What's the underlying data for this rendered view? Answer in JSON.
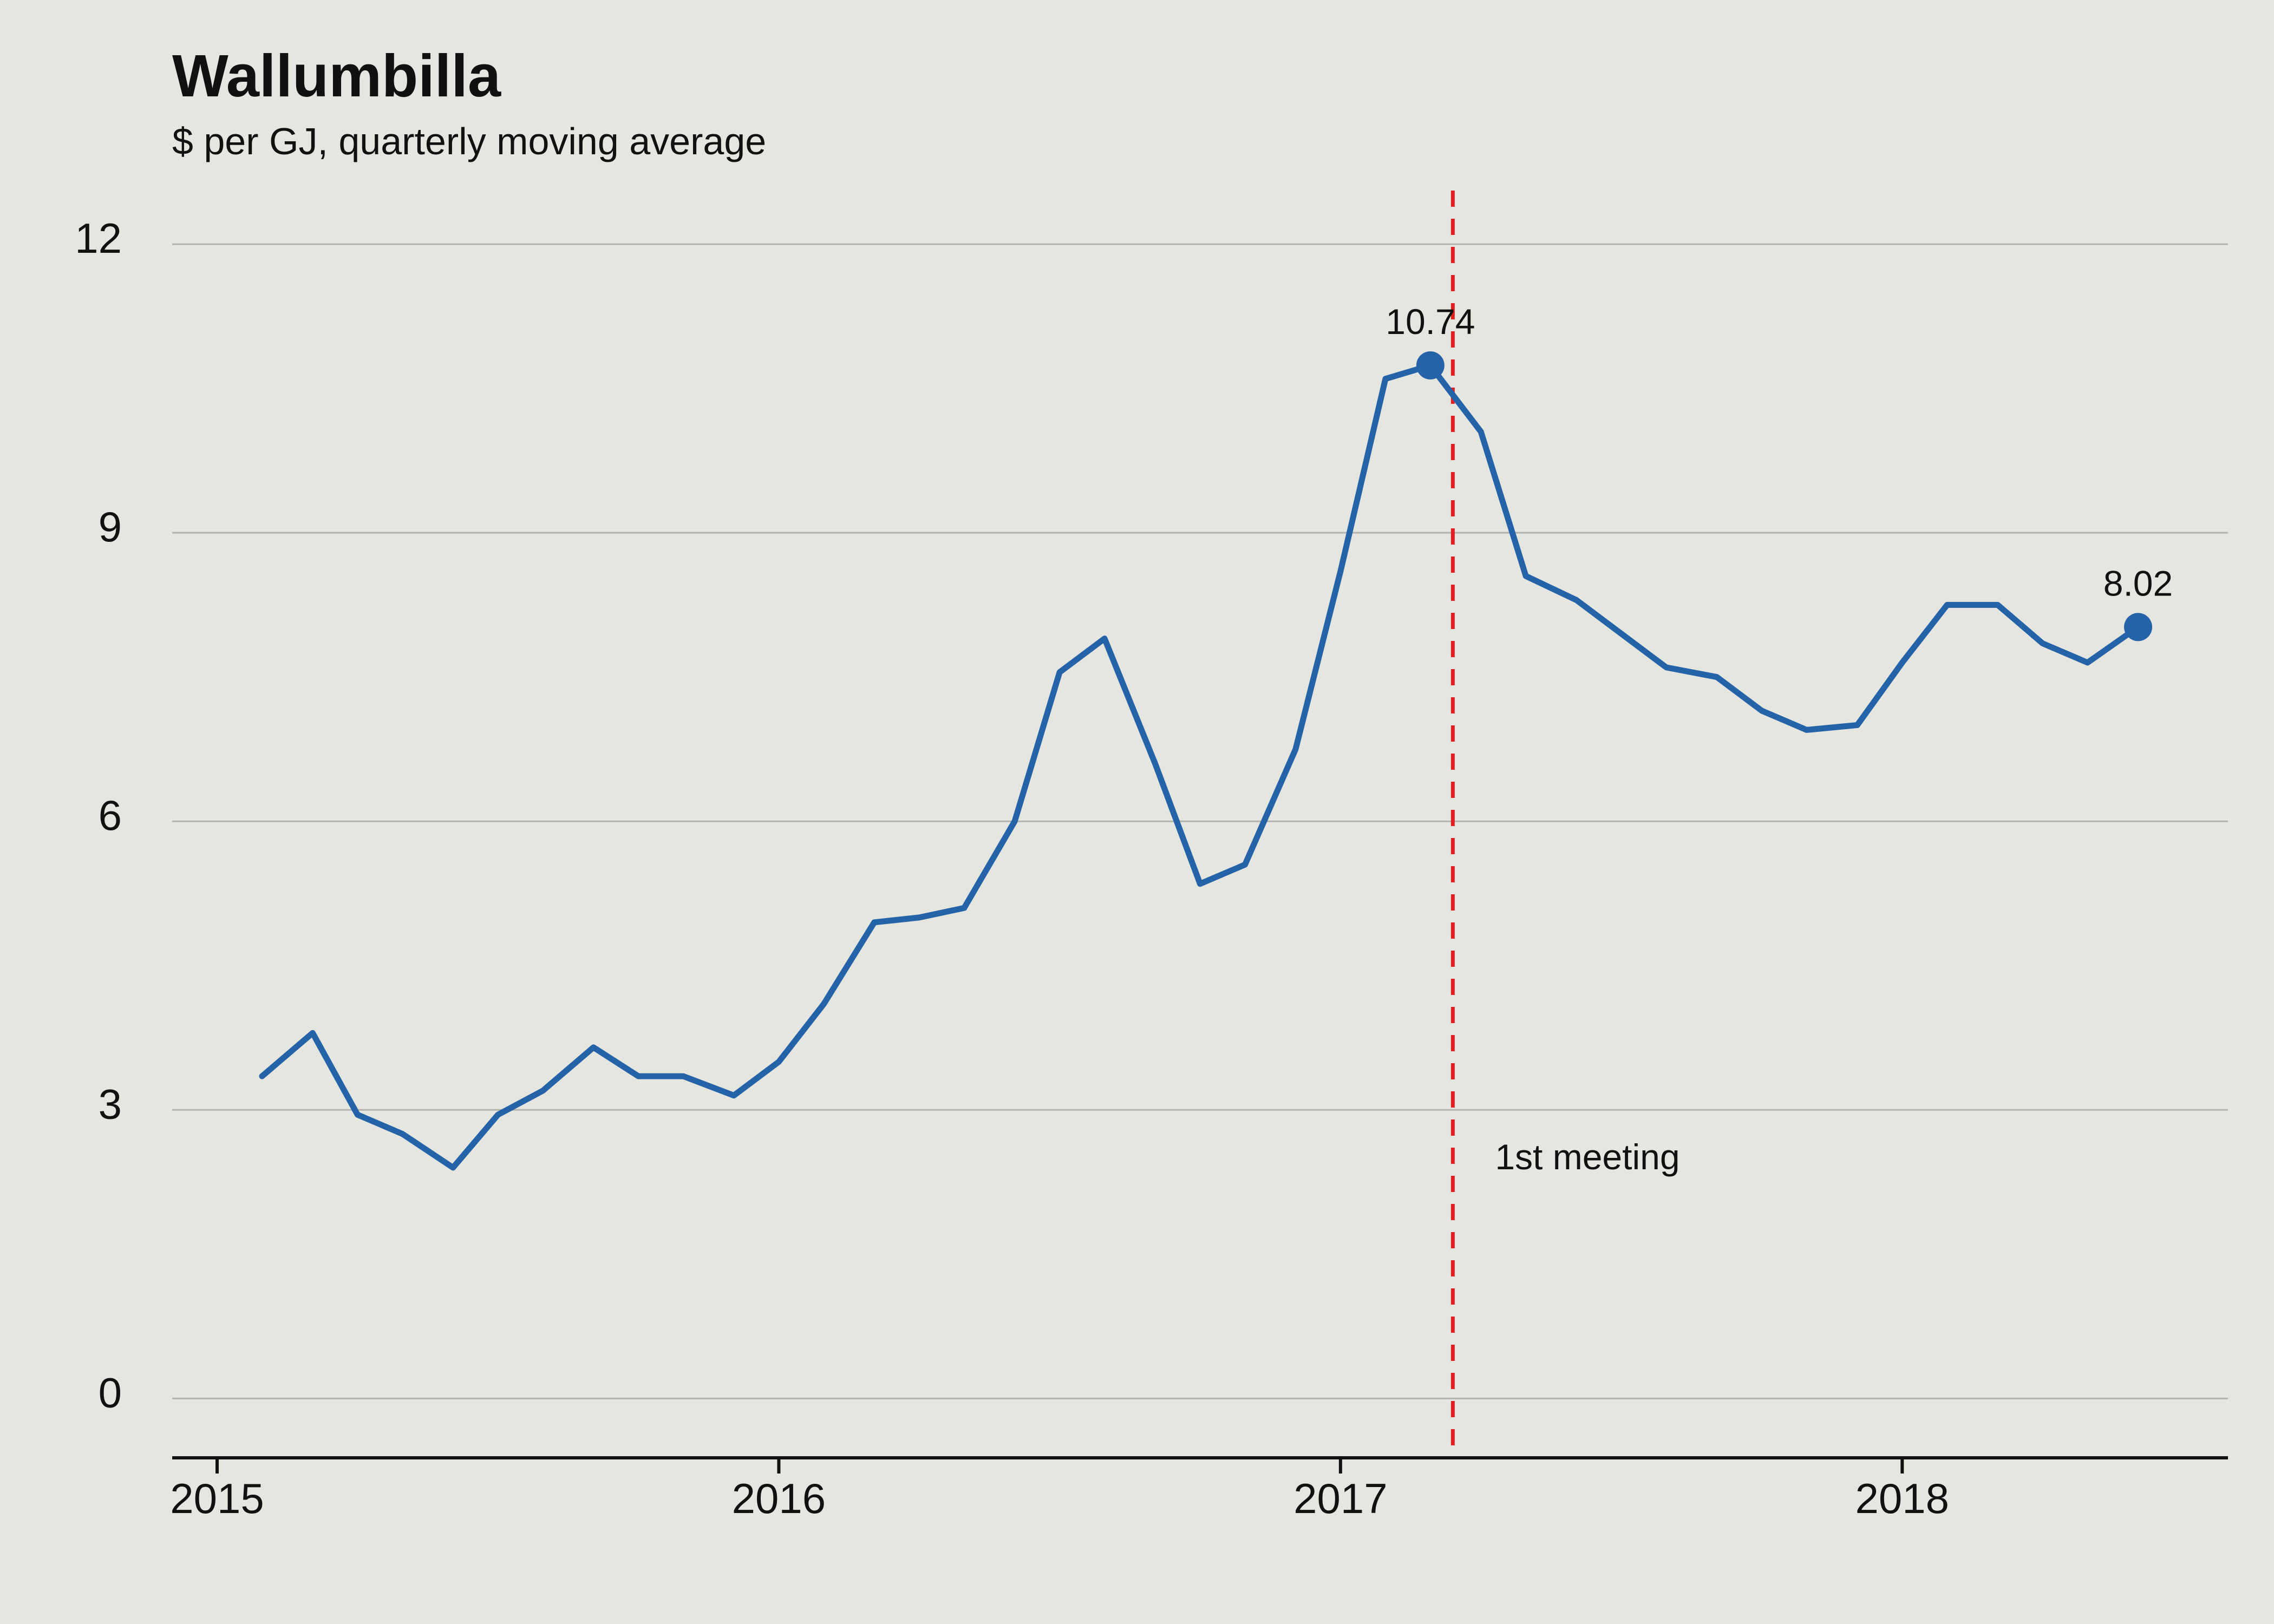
{
  "chart_data": {
    "type": "line",
    "title": "Wallumbilla",
    "subtitle": "$ per GJ, quarterly moving average",
    "xlabel": "",
    "ylabel": "",
    "xlim": [
      2014.92,
      2018.58
    ],
    "ylim": [
      -0.6,
      12.4
    ],
    "y_ticks": [
      0,
      3,
      6,
      9,
      12
    ],
    "x_ticks": [
      2015,
      2016,
      2017,
      2018
    ],
    "x_tick_labels": [
      "2015",
      "2016",
      "2017",
      "2018"
    ],
    "grid": true,
    "line_color": "#2563a8",
    "series": [
      {
        "x": [
          2015.08,
          2015.17,
          2015.25,
          2015.33,
          2015.42,
          2015.5,
          2015.58,
          2015.67,
          2015.75,
          2015.83,
          2015.92,
          2016.0,
          2016.08,
          2016.17,
          2016.25,
          2016.33,
          2016.42,
          2016.5,
          2016.58,
          2016.67,
          2016.75,
          2016.83,
          2016.92,
          2017.0,
          2017.08,
          2017.16,
          2017.25,
          2017.33,
          2017.42,
          2017.5,
          2017.58,
          2017.67,
          2017.75,
          2017.83,
          2017.92,
          2018.0,
          2018.08,
          2018.17,
          2018.25,
          2018.33,
          2018.42
        ],
        "values": [
          3.35,
          3.8,
          2.95,
          2.75,
          2.4,
          2.95,
          3.2,
          3.65,
          3.35,
          3.35,
          3.15,
          3.5,
          4.1,
          4.95,
          5.0,
          5.1,
          6.0,
          7.55,
          7.9,
          6.6,
          5.35,
          5.55,
          6.75,
          8.6,
          10.6,
          10.74,
          10.05,
          8.55,
          8.3,
          7.95,
          7.6,
          7.5,
          7.15,
          6.95,
          7.0,
          7.65,
          8.25,
          8.25,
          7.85,
          7.65,
          8.02
        ]
      }
    ],
    "highlight_points": [
      {
        "x": 2017.16,
        "value": 10.74,
        "label": "10.74"
      },
      {
        "x": 2018.42,
        "value": 8.02,
        "label": "8.02"
      }
    ],
    "annotation": {
      "x": 2017.2,
      "label": "1st meeting",
      "color": "#e02020"
    }
  }
}
